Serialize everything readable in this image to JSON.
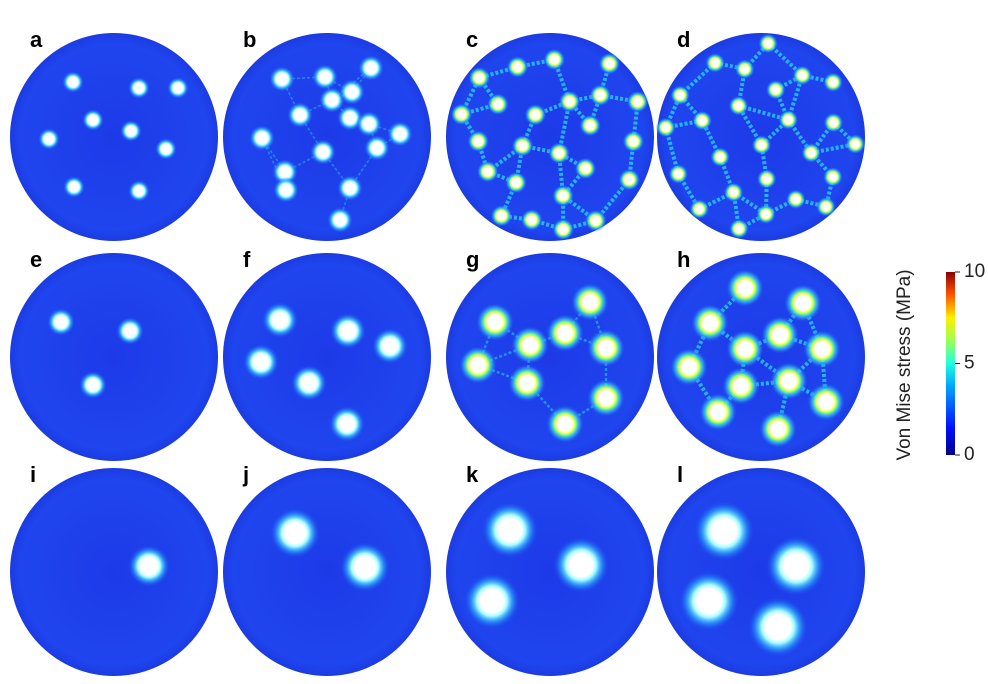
{
  "panel_labels": [
    "a",
    "b",
    "c",
    "d",
    "e",
    "f",
    "g",
    "h",
    "i",
    "j",
    "k",
    "l"
  ],
  "colorbar": {
    "label": "Von Mise stress (MPa)",
    "range": [
      0,
      10
    ],
    "ticks": [
      0,
      5,
      10
    ]
  }
}
